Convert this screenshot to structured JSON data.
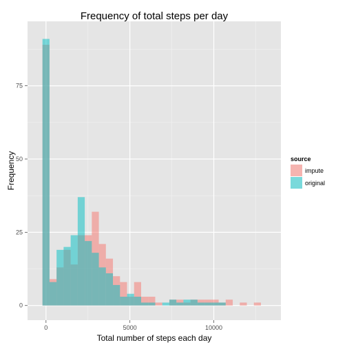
{
  "chart_data": {
    "type": "bar",
    "chart_subtype": "overlaid-histogram",
    "title": "Frequency of total steps per day",
    "xlabel": "Total number of steps each day",
    "ylabel": "Frequency",
    "xlim": [
      -1100,
      14000
    ],
    "ylim": [
      -5,
      97
    ],
    "x_ticks": [
      0,
      5000,
      10000
    ],
    "x_tick_labels": [
      "0",
      "5000",
      "10000"
    ],
    "y_ticks": [
      0,
      25,
      50,
      75
    ],
    "y_tick_labels": [
      "0",
      "25",
      "50",
      "75"
    ],
    "bin_width": 420,
    "grid": true,
    "legend": {
      "title": "source",
      "position": "right"
    },
    "x": [
      0,
      420,
      840,
      1260,
      1680,
      2100,
      2520,
      2940,
      3360,
      3780,
      4200,
      4620,
      5040,
      5460,
      5880,
      6300,
      6720,
      7140,
      7560,
      7980,
      8400,
      8820,
      9240,
      9660,
      10080,
      10500,
      10920,
      11340,
      11760,
      12180,
      12600,
      13020
    ],
    "series": [
      {
        "name": "impute",
        "color": "#F8766D",
        "values": [
          89,
          9,
          13,
          19,
          14,
          24,
          24,
          32,
          21,
          16,
          10,
          8,
          3,
          8,
          3,
          3,
          1,
          0,
          2,
          2,
          1,
          2,
          2,
          2,
          2,
          1,
          2,
          0,
          1,
          0,
          1,
          0
        ]
      },
      {
        "name": "original",
        "color": "#00BFC4",
        "values": [
          91,
          8,
          19,
          20,
          24,
          37,
          22,
          18,
          13,
          11,
          7,
          3,
          4,
          3,
          1,
          1,
          0,
          1,
          2,
          1,
          2,
          2,
          1,
          1,
          1,
          1,
          0,
          0,
          0,
          0,
          0,
          0
        ]
      }
    ]
  }
}
